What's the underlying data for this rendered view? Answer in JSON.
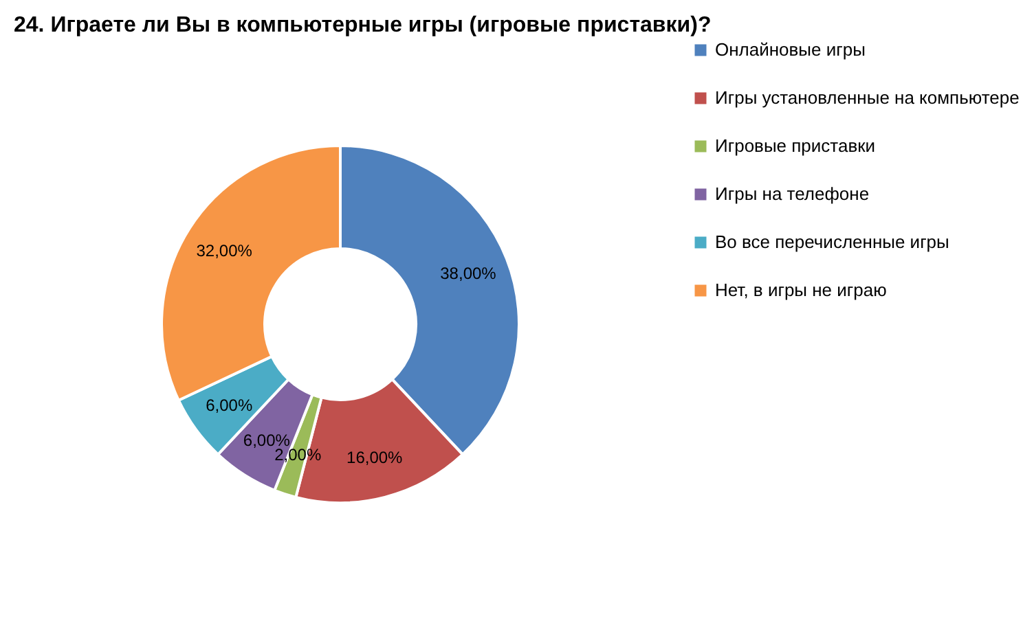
{
  "chart_data": {
    "type": "donut",
    "title": "24. Играете ли Вы в компьютерные игры (игровые приставки)?",
    "categories": [
      "Онлайновые игры",
      "Игры установленные на компьютере",
      "Игровые приставки",
      "Игры на телефоне",
      "Во все перечисленные игры",
      "Нет, в игры не играю"
    ],
    "values": [
      38,
      16,
      2,
      6,
      6,
      32
    ],
    "value_labels": [
      "38,00%",
      "16,00%",
      "2,00%",
      "6,00%",
      "6,00%",
      "32,00%"
    ],
    "colors": [
      "#4f81bd",
      "#c0504d",
      "#9bbb59",
      "#8064a2",
      "#4bacc6",
      "#f79646"
    ],
    "legend": "right"
  }
}
